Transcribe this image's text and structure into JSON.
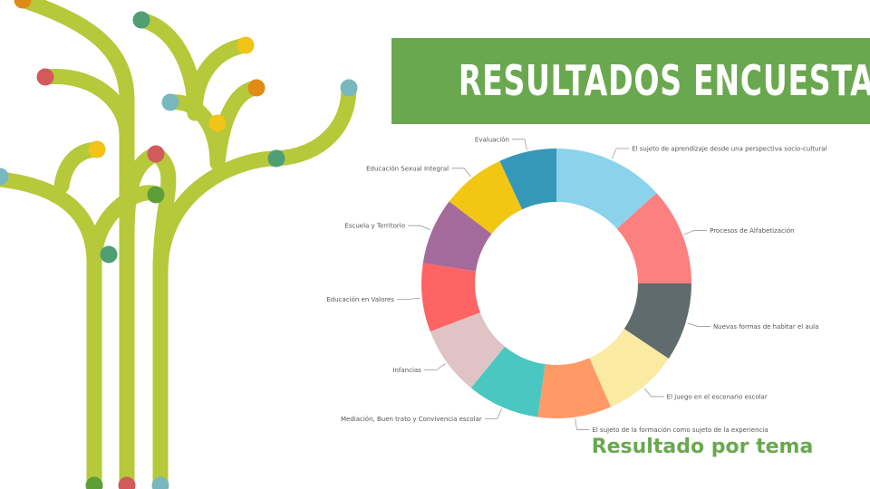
{
  "header": {
    "title": "RESULTADOS ENCUESTA",
    "subtitle": "Resultado por tema"
  },
  "colors": {
    "banner": "#6aa84f",
    "subtitle": "#6aa84f",
    "branch": "#b5c93a",
    "leader_line": "#9a9a9a",
    "label_text": "#555555",
    "dots": [
      "#e08b14",
      "#4f9e74",
      "#f2c418",
      "#d25a5a",
      "#79b7be",
      "#5e9e38"
    ]
  },
  "chart_data": {
    "type": "pie",
    "variant": "donut",
    "start": "12 o'clock, clockwise",
    "slices": [
      {
        "label": "El sujeto de aprendizaje desde una perspectiva socio-cultural",
        "value": 13.3,
        "color": "#8bd3ec"
      },
      {
        "label": "Procesos de Alfabetización",
        "value": 11.7,
        "color": "#fd8080"
      },
      {
        "label": "Nuevas formas de habitar el aula",
        "value": 9.4,
        "color": "#5f6b6c"
      },
      {
        "label": "El juego en el escenario escolar",
        "value": 9.0,
        "color": "#faeaa2"
      },
      {
        "label": "El sujeto de la formación como sujeto de la experiencia",
        "value": 8.8,
        "color": "#ff9a66"
      },
      {
        "label": "Mediación, Buen trato y Convivencia escolar",
        "value": 8.7,
        "color": "#49c7c0"
      },
      {
        "label": "Infancias",
        "value": 8.3,
        "color": "#dfc3c5"
      },
      {
        "label": "Educación en Valores",
        "value": 8.2,
        "color": "#fe6464"
      },
      {
        "label": "Escuela y Territorio",
        "value": 8.0,
        "color": "#a56a9c"
      },
      {
        "label": "Educación Sexual Integral",
        "value": 7.7,
        "color": "#f1c714"
      },
      {
        "label": "Evaluación",
        "value": 6.9,
        "color": "#3598b8"
      }
    ]
  }
}
